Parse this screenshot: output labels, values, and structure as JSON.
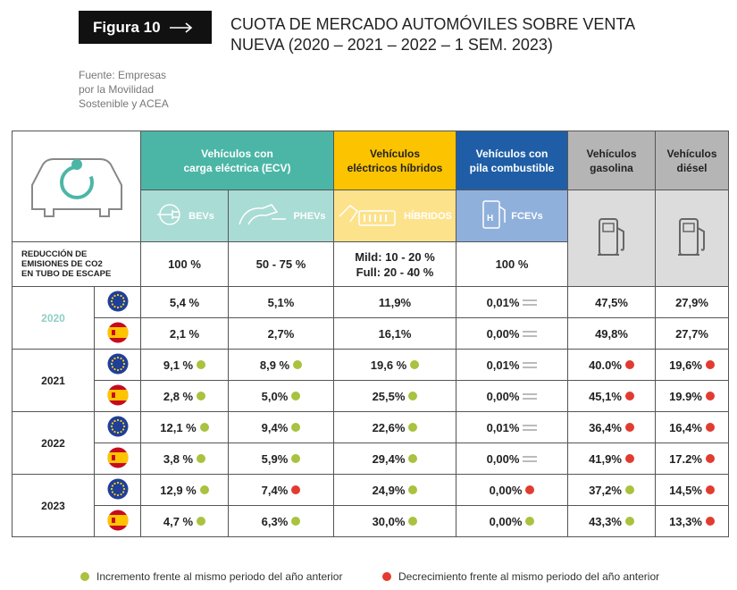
{
  "header": {
    "figure_label": "Figura 10",
    "title_lines": [
      "CUOTA DE MERCADO AUTOMÓVILES SOBRE VENTA",
      "NUEVA (2020 – 2021 – 2022 – 1 SEM. 2023)"
    ],
    "source_lines": [
      "Fuente: Empresas",
      "por la Movilidad",
      "Sostenible y ACEA"
    ]
  },
  "table": {
    "groups": [
      {
        "lines": [
          "Vehículos con",
          "carga eléctrica (ECV)"
        ],
        "span": 2,
        "color": "#4cb6a6",
        "light": "#a9dcd4"
      },
      {
        "lines": [
          "Vehículos",
          "eléctricos híbridos"
        ],
        "span": 1,
        "color": "#fbc300",
        "light": "#fde28c",
        "dark_text": true
      },
      {
        "lines": [
          "Vehículos con",
          "pila combustible"
        ],
        "span": 1,
        "color": "#1f5ea6",
        "light": "#90b0dc"
      },
      {
        "lines": [
          "Vehículos",
          "gasolina"
        ],
        "span": 1,
        "color": "#b5b5b5",
        "light": "#dcdcdc",
        "dark_text": true
      },
      {
        "lines": [
          "Vehículos",
          "diésel"
        ],
        "span": 1,
        "color": "#b5b5b5",
        "light": "#dcdcdc",
        "dark_text": true
      }
    ],
    "subheaders": [
      "BEVs",
      "PHEVs",
      "HÍBRIDOS",
      "FCEVs"
    ],
    "reduction": {
      "lines": [
        "REDUCCIÓN DE",
        "EMISIONES DE CO2",
        "EN TUBO DE ESCAPE"
      ],
      "values": [
        "100 %",
        "50 - 75 %",
        [
          "Mild: 10 - 20 %",
          "Full: 20 - 40 %"
        ],
        "100 %"
      ]
    },
    "years": [
      {
        "year": "2020",
        "rows": [
          [
            {
              "text": "5,4 %"
            },
            {
              "text": "5,1%"
            },
            {
              "text": "11,9%"
            },
            {
              "text": "0,01%",
              "trend": "same"
            },
            {
              "text": "47,5%"
            },
            {
              "text": "27,9%"
            }
          ],
          [
            {
              "text": "2,1 %"
            },
            {
              "text": "2,7%"
            },
            {
              "text": "16,1%"
            },
            {
              "text": "0,00%",
              "trend": "same"
            },
            {
              "text": "49,8%"
            },
            {
              "text": "27,7%"
            }
          ]
        ]
      },
      {
        "year": "2021",
        "rows": [
          [
            {
              "text": "9,1 %",
              "trend": "up"
            },
            {
              "text": "8,9 %",
              "trend": "up"
            },
            {
              "text": "19,6 %",
              "trend": "up"
            },
            {
              "text": "0,01%",
              "trend": "same"
            },
            {
              "text": "40.0%",
              "trend": "down"
            },
            {
              "text": "19,6%",
              "trend": "down"
            }
          ],
          [
            {
              "text": "2,8 %",
              "trend": "up"
            },
            {
              "text": "5,0%",
              "trend": "up"
            },
            {
              "text": "25,5%",
              "trend": "up"
            },
            {
              "text": "0,00%",
              "trend": "same"
            },
            {
              "text": "45,1%",
              "trend": "down"
            },
            {
              "text": "19.9%",
              "trend": "down"
            }
          ]
        ]
      },
      {
        "year": "2022",
        "rows": [
          [
            {
              "text": "12,1 %",
              "trend": "up"
            },
            {
              "text": "9,4%",
              "trend": "up"
            },
            {
              "text": "22,6%",
              "trend": "up"
            },
            {
              "text": "0,01%",
              "trend": "same"
            },
            {
              "text": "36,4%",
              "trend": "down"
            },
            {
              "text": "16,4%",
              "trend": "down"
            }
          ],
          [
            {
              "text": "3,8 %",
              "trend": "up"
            },
            {
              "text": "5,9%",
              "trend": "up"
            },
            {
              "text": "29,4%",
              "trend": "up"
            },
            {
              "text": "0,00%",
              "trend": "same"
            },
            {
              "text": "41,9%",
              "trend": "down"
            },
            {
              "text": "17.2%",
              "trend": "down"
            }
          ]
        ]
      },
      {
        "year": "2023",
        "rows": [
          [
            {
              "text": "12,9 %",
              "trend": "up"
            },
            {
              "text": "7,4%",
              "trend": "down"
            },
            {
              "text": "24,9%",
              "trend": "up"
            },
            {
              "text": "0,00%",
              "trend": "down"
            },
            {
              "text": "37,2%",
              "trend": "up"
            },
            {
              "text": "14,5%",
              "trend": "down"
            }
          ],
          [
            {
              "text": "4,7 %",
              "trend": "up"
            },
            {
              "text": "6,3%",
              "trend": "up"
            },
            {
              "text": "30,0%",
              "trend": "up"
            },
            {
              "text": "0,00%",
              "trend": "up"
            },
            {
              "text": "43,3%",
              "trend": "up"
            },
            {
              "text": "13,3%",
              "trend": "down"
            }
          ]
        ]
      }
    ]
  },
  "legend": {
    "increase": "Incremento frente al mismo periodo del año anterior",
    "decrease": "Decrecimiento frente al mismo periodo del año anterior"
  }
}
